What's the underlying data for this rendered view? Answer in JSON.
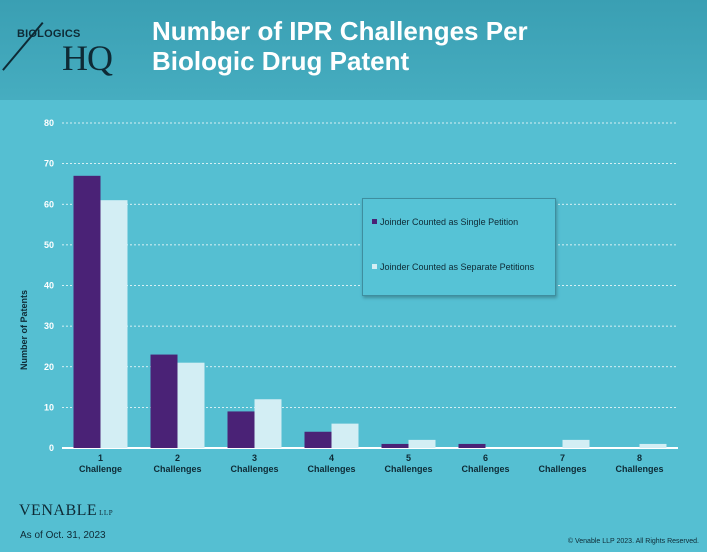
{
  "header": {
    "logo_top": "BIOLOGICS",
    "logo_main": "HQ",
    "title_line1": "Number of IPR Challenges Per",
    "title_line2": "Biologic Drug Patent"
  },
  "footer": {
    "brand": "VENABLE",
    "brand_suffix": "LLP",
    "as_of": "As of Oct. 31, 2023",
    "copyright": "© Venable LLP 2023. All Rights Reserved."
  },
  "colors": {
    "series1": "#4a2276",
    "series2": "#d3eef4",
    "gridline": "#ffffff"
  },
  "chart_data": {
    "type": "bar",
    "ylabel": "Number of Patents",
    "xlabel": "",
    "ylim": [
      0,
      80
    ],
    "yticks": [
      0,
      10,
      20,
      30,
      40,
      50,
      60,
      70,
      80
    ],
    "grid": true,
    "legend_position": "right",
    "categories": [
      [
        "1",
        "Challenge"
      ],
      [
        "2",
        "Challenges"
      ],
      [
        "3",
        "Challenges"
      ],
      [
        "4",
        "Challenges"
      ],
      [
        "5",
        "Challenges"
      ],
      [
        "6",
        "Challenges"
      ],
      [
        "7",
        "Challenges"
      ],
      [
        "8",
        "Challenges"
      ]
    ],
    "series": [
      {
        "name": "Joinder Counted as Single Petition",
        "values": [
          67,
          23,
          9,
          4,
          1,
          1,
          0,
          0
        ]
      },
      {
        "name": "Joinder Counted as Separate Petitions",
        "values": [
          61,
          21,
          12,
          6,
          2,
          0,
          2,
          1
        ]
      }
    ]
  }
}
